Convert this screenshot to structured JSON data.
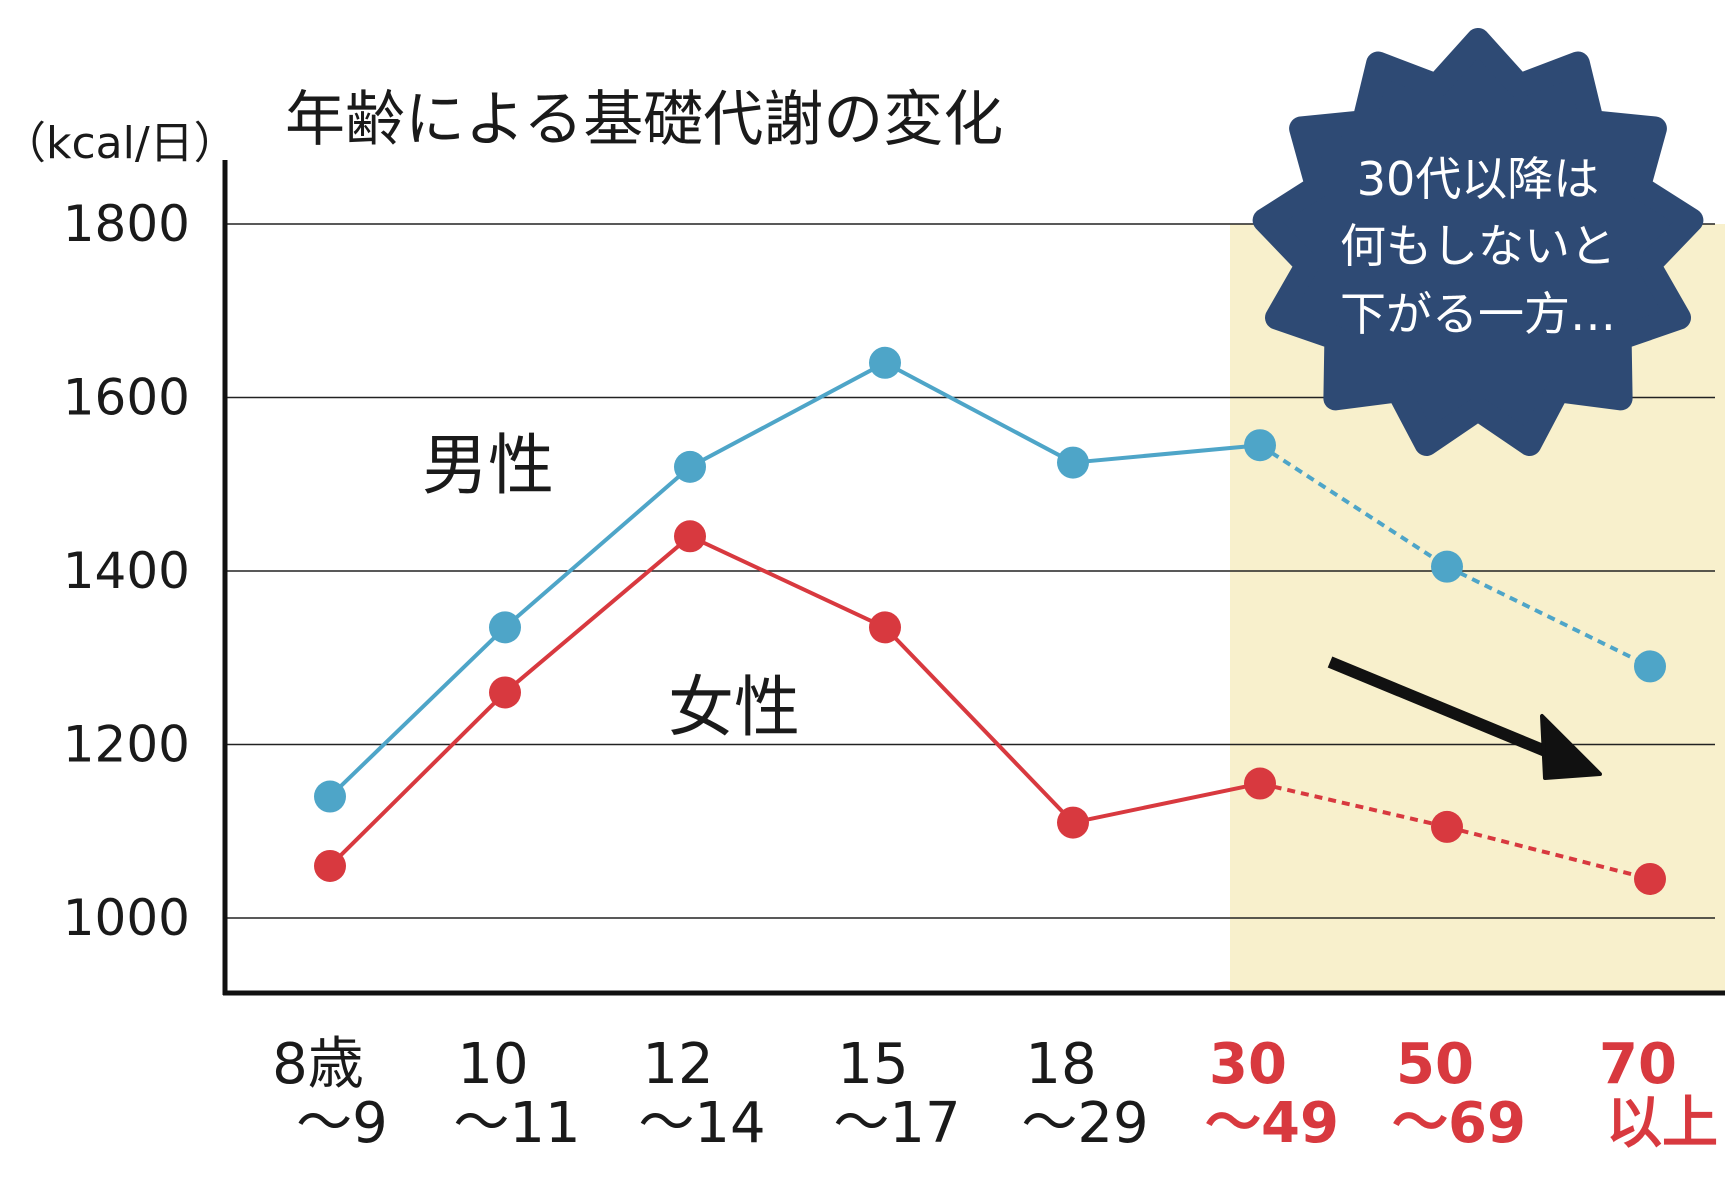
{
  "chart_data": {
    "type": "line",
    "title": "年齢による基礎代謝の変化",
    "ylabel": "（kcal/日）",
    "ylim": [
      1000,
      1800
    ],
    "yticks": [
      "1800",
      "1600",
      "1400",
      "1200",
      "1000"
    ],
    "categories": [
      {
        "line1": "8歳",
        "line2": "～9",
        "highlight": false
      },
      {
        "line1": "10",
        "line2": "～11",
        "highlight": false
      },
      {
        "line1": "12",
        "line2": "～14",
        "highlight": false
      },
      {
        "line1": "15",
        "line2": "～17",
        "highlight": false
      },
      {
        "line1": "18",
        "line2": "～29",
        "highlight": false
      },
      {
        "line1": "30",
        "line2": "～49",
        "highlight": true
      },
      {
        "line1": "50",
        "line2": "～69",
        "highlight": true
      },
      {
        "line1": "70",
        "line2": "以上",
        "highlight": true
      }
    ],
    "series": [
      {
        "name": "男性",
        "color": "#4ea5c8",
        "values": [
          1140,
          1335,
          1520,
          1640,
          1525,
          1545,
          1405,
          1290
        ]
      },
      {
        "name": "女性",
        "color": "#d8393f",
        "values": [
          1060,
          1260,
          1440,
          1335,
          1110,
          1155,
          1105,
          1045
        ]
      }
    ],
    "dashed_from_index": 5,
    "highlight_color": "#f8f0cc",
    "grid": true
  },
  "annotation": {
    "lines": [
      "30代以降は",
      "何もしないと",
      "下がる一方…"
    ],
    "color": "#2e4a74"
  }
}
